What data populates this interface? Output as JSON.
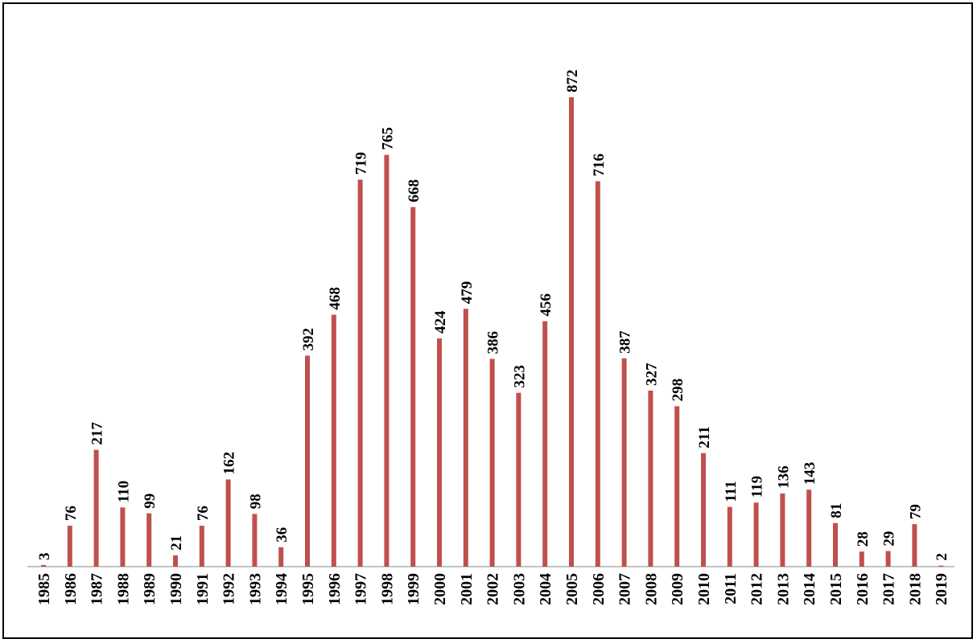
{
  "chart_data": {
    "type": "bar",
    "title": "",
    "xlabel": "",
    "ylabel": "",
    "ylim": [
      0,
      900
    ],
    "grid": false,
    "legend": "none",
    "bar_color": "#c0504d",
    "categories": [
      "1985",
      "1986",
      "1987",
      "1988",
      "1989",
      "1990",
      "1991",
      "1992",
      "1993",
      "1994",
      "1995",
      "1996",
      "1997",
      "1998",
      "1999",
      "2000",
      "2001",
      "2002",
      "2003",
      "2004",
      "2005",
      "2006",
      "2007",
      "2008",
      "2009",
      "2010",
      "2011",
      "2012",
      "2013",
      "2014",
      "2015",
      "2016",
      "2017",
      "2018",
      "2019"
    ],
    "values": [
      3,
      76,
      217,
      110,
      99,
      21,
      76,
      162,
      98,
      36,
      392,
      468,
      719,
      765,
      668,
      424,
      479,
      386,
      323,
      456,
      872,
      716,
      387,
      327,
      298,
      211,
      111,
      119,
      136,
      143,
      81,
      28,
      29,
      79,
      2
    ],
    "data_labels": [
      "3",
      "76",
      "217",
      "110",
      "99",
      "21",
      "76",
      "162",
      "98",
      "36",
      "392",
      "468",
      "719",
      "765",
      "668",
      "424",
      "479",
      "386",
      "323",
      "456",
      "872",
      "716",
      "387",
      "327",
      "298",
      "211",
      "111",
      "119",
      "136",
      "143",
      "81",
      "28",
      "29",
      "79",
      "2"
    ]
  }
}
